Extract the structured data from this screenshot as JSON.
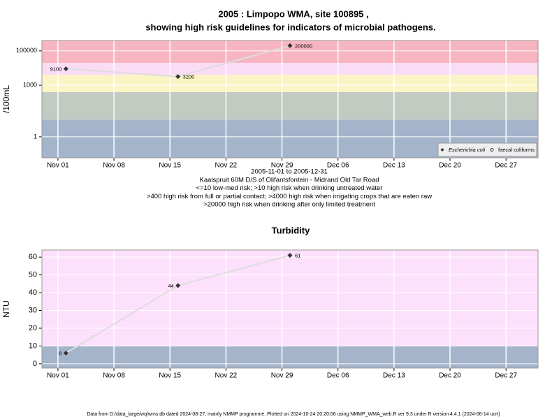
{
  "chart_data": [
    {
      "type": "line",
      "title": "2005 : Limpopo WMA, site 100895 ,",
      "subtitle": "showing high risk guidelines for indicators of microbial pathogens.",
      "ylabel": "/100mL",
      "log_y": true,
      "x": [
        "2005-11-02",
        "2005-11-16",
        "2005-11-30"
      ],
      "series": [
        {
          "name": "Escherichia coli",
          "color": "#333333",
          "line_color": "#dddddd",
          "marker": "diamond",
          "values": [
            9100,
            3200,
            200000
          ]
        },
        {
          "name": "faecal coliforms",
          "color": "#333333",
          "line_color": "#dddddd",
          "marker": "circle",
          "values": [
            null,
            null,
            null
          ]
        }
      ],
      "xlim": [
        "2005-10-30",
        "2005-12-31"
      ],
      "xticks": [
        {
          "value": "2005-11-01",
          "label": "Nov 01"
        },
        {
          "value": "2005-11-08",
          "label": "Nov 08"
        },
        {
          "value": "2005-11-15",
          "label": "Nov 15"
        },
        {
          "value": "2005-11-22",
          "label": "Nov 22"
        },
        {
          "value": "2005-11-29",
          "label": "Nov 29"
        },
        {
          "value": "2005-12-06",
          "label": "Dec 06"
        },
        {
          "value": "2005-12-13",
          "label": "Dec 13"
        },
        {
          "value": "2005-12-20",
          "label": "Dec 20"
        },
        {
          "value": "2005-12-27",
          "label": "Dec 27"
        }
      ],
      "ylim": [
        0.06,
        400000
      ],
      "yticks": [
        1,
        1000,
        100000
      ],
      "thresholds": [
        10,
        400,
        4000,
        20000
      ],
      "band_colors": [
        "#a3b4cb",
        "#c1cbc1",
        "#fbf5c6",
        "#fadcf5",
        "#f7b5c1"
      ],
      "grid": true,
      "legend": "bottom-right",
      "notes": [
        "2005-11-01 to 2005-12-31",
        "Kaalspruit 60M D/S of Olifantsfontein - Midrand Old Tar Road",
        "<=10 low-med risk; >10 high risk when drinking untreated water",
        ">400 high risk from full or partial contact; >4000 high risk when irrigating crops that are eaten raw",
        ">20000 high risk when drinking after only limited treatment"
      ]
    },
    {
      "type": "line",
      "title": "Turbidity",
      "ylabel": "NTU",
      "log_y": false,
      "x": [
        "2005-11-02",
        "2005-11-16",
        "2005-11-30"
      ],
      "series": [
        {
          "name": "Turbidity",
          "color": "#333333",
          "line_color": "#dddddd",
          "marker": "diamond",
          "values": [
            6,
            44,
            61
          ]
        }
      ],
      "xlim": [
        "2005-10-30",
        "2005-12-31"
      ],
      "xticks": [
        {
          "value": "2005-11-01",
          "label": "Nov 01"
        },
        {
          "value": "2005-11-08",
          "label": "Nov 08"
        },
        {
          "value": "2005-11-15",
          "label": "Nov 15"
        },
        {
          "value": "2005-11-22",
          "label": "Nov 22"
        },
        {
          "value": "2005-11-29",
          "label": "Nov 29"
        },
        {
          "value": "2005-12-06",
          "label": "Dec 06"
        },
        {
          "value": "2005-12-13",
          "label": "Dec 13"
        },
        {
          "value": "2005-12-20",
          "label": "Dec 20"
        },
        {
          "value": "2005-12-27",
          "label": "Dec 27"
        }
      ],
      "ylim": [
        -2.4,
        64
      ],
      "yticks": [
        0,
        10,
        20,
        30,
        40,
        50,
        60
      ],
      "thresholds": [
        10
      ],
      "band_colors": [
        "#a3b4cb",
        "#fde0fb"
      ],
      "grid": true
    }
  ],
  "footer": "Data from D:/data_large/wq/wms.db dated 2024-08-27, mainly NMMP programme. Plotted on 2024-10-24 20:20:06 using NMMP_WMA_web.R ver 9.3 under R version 4.4.1 (2024-06-14 ucrt)"
}
